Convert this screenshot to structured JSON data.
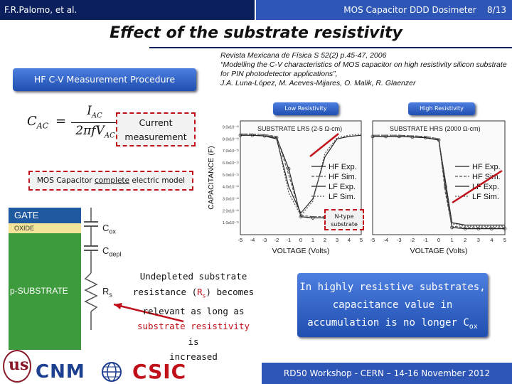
{
  "header": {
    "authors": "F.R.Palomo, et al.",
    "deck_title": "MOS Capacitor DDD Dosimeter",
    "slide_number": "8/13"
  },
  "slide": {
    "title": "Effect of the substrate resistivity"
  },
  "citation": {
    "line1": "Revista Mexicana de Física S 52(2) p.45-47, 2006",
    "line2": "“Modelling the C-V characteristics of MOS capacitor on high resistivity silicon substrate for PIN photodetector applications”,",
    "line3": "J.A. Luna-López, M. Aceves-Mijares, O. Malik, R. Glaenzer"
  },
  "procedure_box": {
    "label": "HF C-V Measurement Procedure"
  },
  "formula": {
    "lhs": "C",
    "lhs_sub": "AC",
    "equals": "=",
    "num": "I",
    "num_sub": "AC",
    "den_prefix": "2πfV",
    "den_sub": "AC"
  },
  "current_box": {
    "line1": "Current",
    "line2": "measurement"
  },
  "model_box": {
    "prefix": "MOS Capacitor ",
    "underlined": "complete",
    "suffix": " electric model"
  },
  "resistivity_tags": {
    "low": "Low Resistivity",
    "high": "High Resistivity"
  },
  "ntype_tag": {
    "line1": "N-type",
    "line2": "substrate"
  },
  "chart_data": [
    {
      "type": "line",
      "title": "SUBSTRATE LRS (2-5 Ω-cm)",
      "xlabel": "VOLTAGE (Volts)",
      "ylabel": "CAPACITANCE (F)",
      "x_ticks": [
        "-5",
        "-4",
        "-3",
        "-2",
        "-1",
        "0",
        "1",
        "2",
        "3",
        "4",
        "5"
      ],
      "y_ticks": [
        "9.0x10⁻¹¹",
        "8.0x10⁻¹¹",
        "7.0x10⁻¹¹",
        "6.0x10⁻¹¹",
        "5.0x10⁻¹¹",
        "4.0x10⁻¹¹",
        "3.0x10⁻¹¹",
        "2.0x10⁻¹¹",
        "1.0x10⁻¹¹"
      ],
      "legend": [
        "HF Exp.",
        "HF Sim.",
        "LF Exp.",
        "LF Sim."
      ],
      "legend_position": "center-right",
      "x": [
        -5,
        -4,
        -3,
        -2,
        -1,
        0,
        1,
        2,
        3,
        4,
        5
      ],
      "series": [
        {
          "name": "HF Exp.",
          "values": [
            8.3e-11,
            8.3e-11,
            8.25e-11,
            8.1e-11,
            5.5e-11,
            1.5e-11,
            1.4e-11,
            1.4e-11,
            1.4e-11,
            1.4e-11,
            1.4e-11
          ]
        },
        {
          "name": "HF Sim.",
          "values": [
            8.4e-11,
            8.4e-11,
            8.35e-11,
            8.2e-11,
            5e-11,
            1.6e-11,
            1.5e-11,
            1.5e-11,
            1.5e-11,
            1.5e-11,
            1.5e-11
          ]
        },
        {
          "name": "LF Exp.",
          "values": [
            8.3e-11,
            8.3e-11,
            8.25e-11,
            8e-11,
            4e-11,
            1.8e-11,
            3e-11,
            6.5e-11,
            8e-11,
            8.2e-11,
            8.3e-11
          ]
        },
        {
          "name": "LF Sim.",
          "values": [
            8.4e-11,
            8.4e-11,
            8.35e-11,
            8.1e-11,
            3.5e-11,
            1.6e-11,
            2.8e-11,
            6.8e-11,
            8.1e-11,
            8.3e-11,
            8.4e-11
          ]
        }
      ]
    },
    {
      "type": "line",
      "title": "SUBSTRATE HRS (2000 Ω-cm)",
      "xlabel": "VOLTAGE (Volts)",
      "ylabel": "",
      "x_ticks": [
        "-5",
        "-4",
        "-3",
        "-2",
        "-1",
        "0",
        "1",
        "2",
        "3",
        "4",
        "5"
      ],
      "legend": [
        "HF Exp.",
        "HF Sim.",
        "LF Exp.",
        "LF Sim."
      ],
      "legend_position": "right",
      "x": [
        -5,
        -4,
        -3,
        -2,
        -1,
        0,
        0.5,
        1,
        2,
        3,
        4,
        5
      ],
      "series": [
        {
          "name": "HF Exp.",
          "values": [
            8.2e-11,
            8.2e-11,
            8.2e-11,
            8.15e-11,
            8.1e-11,
            7.9e-11,
            4e-11,
            6e-12,
            5e-12,
            5e-12,
            5e-12,
            5e-12
          ]
        },
        {
          "name": "HF Sim.",
          "values": [
            8.3e-11,
            8.3e-11,
            8.3e-11,
            8.25e-11,
            8.2e-11,
            8e-11,
            3.5e-11,
            7e-12,
            6e-12,
            6e-12,
            6e-12,
            6e-12
          ]
        },
        {
          "name": "LF Exp.",
          "values": [
            8.2e-11,
            8.2e-11,
            8.2e-11,
            8.15e-11,
            8.1e-11,
            7.9e-11,
            4.5e-11,
            1e-11,
            8e-12,
            8e-12,
            8e-12,
            8e-12
          ]
        },
        {
          "name": "LF Sim.",
          "values": [
            8.3e-11,
            8.3e-11,
            8.3e-11,
            8.25e-11,
            8.2e-11,
            8e-11,
            4.2e-11,
            9e-12,
            7e-12,
            7e-12,
            7e-12,
            7e-12
          ]
        }
      ]
    }
  ],
  "stack": {
    "gate": "GATE",
    "oxide": "OXIDE",
    "substrate": "p-SUBSTRATE"
  },
  "circuit": {
    "cox": "C",
    "cox_sub": "ox",
    "cdepl": "C",
    "cdepl_sub": "depl",
    "rs": "R",
    "rs_sub": "s"
  },
  "undepleted_text": {
    "line1": "Undepleted substrate",
    "line2_a": "resistance (",
    "line2_r": "R",
    "line2_sub": "s",
    "line2_b": ") becomes",
    "line3": "relevant as long as",
    "line4_red": "substrate resistivity",
    "line4_b": " is",
    "line5": "increased"
  },
  "conclusion_box": {
    "line1": "In highly resistive substrates,",
    "line2": "capacitance value in",
    "line3": "accumulation is no longer C",
    "line3_sub": "ox"
  },
  "footer": {
    "text": "RD50 Workshop - CERN – 14-16 November  2012",
    "logo_us": "us",
    "logo_cnm": "CNM",
    "logo_csic": "CSIC"
  },
  "colors": {
    "navy": "#0b1f5c",
    "blue": "#2e56b6",
    "red": "#c0101a"
  }
}
